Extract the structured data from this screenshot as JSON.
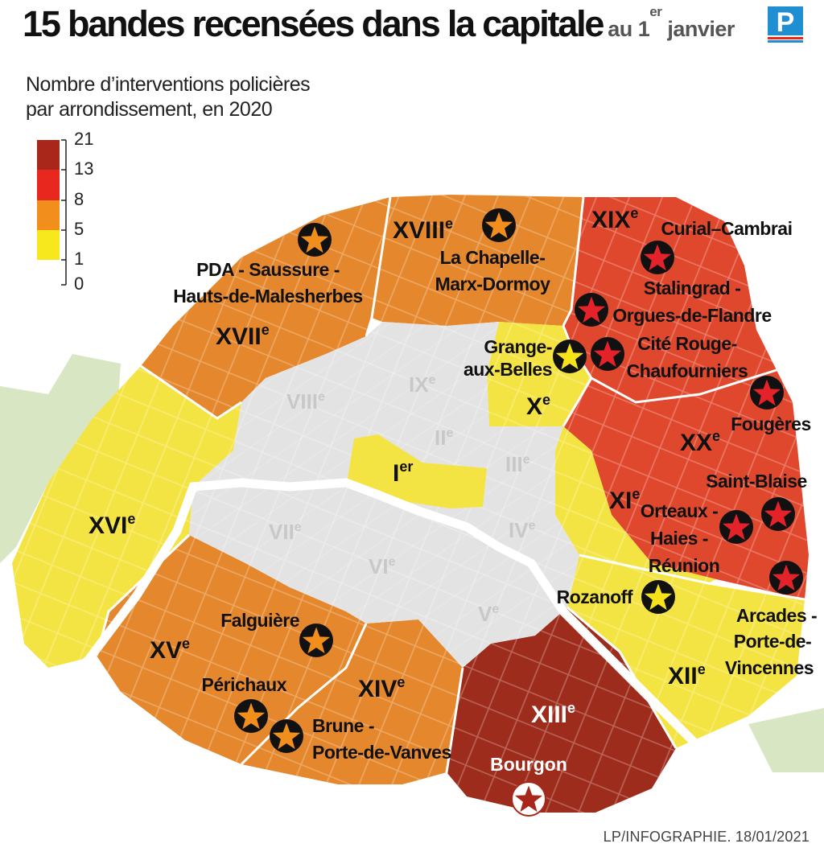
{
  "title": {
    "main": "15 bandes recensées dans la capitale",
    "sub_prefix": "au 1",
    "sub_sup": "er",
    "sub_suffix": " janvier"
  },
  "logo": {
    "letter": "P",
    "color": "#1f8fd1"
  },
  "legend": {
    "title_line1": "Nombre d’interventions policières",
    "title_line2": "par arrondissement, en 2020",
    "ticks": [
      "21",
      "13",
      "8",
      "5",
      "1",
      "0"
    ],
    "colors": [
      "#a9271a",
      "#e8281e",
      "#f28f1c",
      "#f7e81d",
      "#ffffff"
    ]
  },
  "arrondissements": [
    {
      "label": "I",
      "sup": "er",
      "color": "yellow"
    },
    {
      "label": "II",
      "sup": "e",
      "color": "grey"
    },
    {
      "label": "III",
      "sup": "e",
      "color": "grey"
    },
    {
      "label": "IV",
      "sup": "e",
      "color": "grey"
    },
    {
      "label": "V",
      "sup": "e",
      "color": "grey"
    },
    {
      "label": "VI",
      "sup": "e",
      "color": "grey"
    },
    {
      "label": "VII",
      "sup": "e",
      "color": "grey"
    },
    {
      "label": "VIII",
      "sup": "e",
      "color": "grey"
    },
    {
      "label": "IX",
      "sup": "e",
      "color": "grey"
    },
    {
      "label": "X",
      "sup": "e",
      "color": "yellow"
    },
    {
      "label": "XI",
      "sup": "e",
      "color": "yellow"
    },
    {
      "label": "XII",
      "sup": "e",
      "color": "yellow"
    },
    {
      "label": "XIII",
      "sup": "e",
      "color": "dark-red"
    },
    {
      "label": "XIV",
      "sup": "e",
      "color": "orange"
    },
    {
      "label": "XV",
      "sup": "e",
      "color": "orange"
    },
    {
      "label": "XVI",
      "sup": "e",
      "color": "yellow"
    },
    {
      "label": "XVII",
      "sup": "e",
      "color": "orange"
    },
    {
      "label": "XVIII",
      "sup": "e",
      "color": "orange"
    },
    {
      "label": "XIX",
      "sup": "e",
      "color": "red"
    },
    {
      "label": "XX",
      "sup": "e",
      "color": "red"
    }
  ],
  "gangs": [
    {
      "lines": [
        "PDA - Saussure -",
        "Hauts-de-Malesherbes"
      ],
      "star": "orange"
    },
    {
      "lines": [
        "La Chapelle-",
        "Marx-Dormoy"
      ],
      "star": "orange"
    },
    {
      "lines": [
        "Curial–Cambrai"
      ],
      "star": "red"
    },
    {
      "lines": [
        "Stalingrad -",
        "Orgues-de-Flandre"
      ],
      "star": "red"
    },
    {
      "lines": [
        "Cité Rouge-",
        "Chaufourniers"
      ],
      "star": "red"
    },
    {
      "lines": [
        "Grange-",
        "aux-Belles"
      ],
      "star": "yellow"
    },
    {
      "lines": [
        "Fougères"
      ],
      "star": "red"
    },
    {
      "lines": [
        "Saint-Blaise"
      ],
      "star": "red"
    },
    {
      "lines": [
        "Orteaux -",
        "Haies -",
        "Réunion"
      ],
      "star": "red"
    },
    {
      "lines": [
        "Rozanoff"
      ],
      "star": "yellow"
    },
    {
      "lines": [
        "Arcades -",
        "Porte-de-",
        "Vincennes"
      ],
      "star": "red"
    },
    {
      "lines": [
        "Falguière"
      ],
      "star": "orange"
    },
    {
      "lines": [
        "Périchaux"
      ],
      "star": "orange"
    },
    {
      "lines": [
        "Brune -",
        "Porte-de-Vanves"
      ],
      "star": "orange"
    },
    {
      "lines": [
        "Bourgon"
      ],
      "star": "dark-red"
    }
  ],
  "credit": "LP/INFOGRAPHIE.  18/01/2021"
}
